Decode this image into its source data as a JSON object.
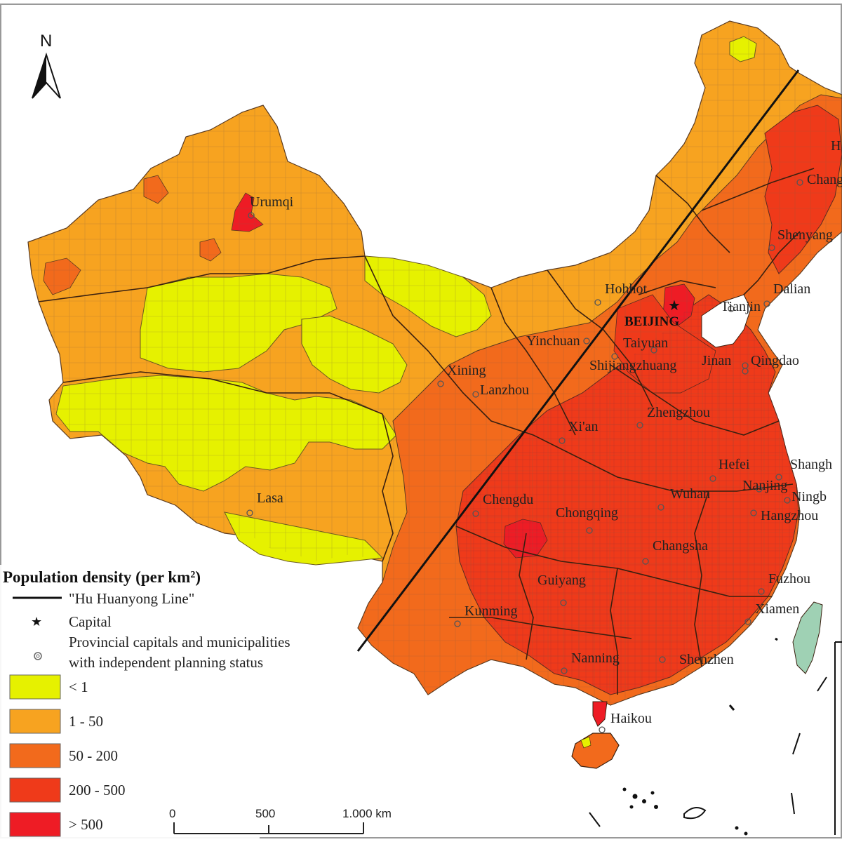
{
  "map": {
    "north_label": "N",
    "hu_line_color": "#111111",
    "capital": {
      "name": "BEIJING",
      "symbol": "★"
    },
    "cities": [
      {
        "name": "Urumqi"
      },
      {
        "name": "Lasa"
      },
      {
        "name": "Xining"
      },
      {
        "name": "Lanzhou"
      },
      {
        "name": "Yinchuan"
      },
      {
        "name": "Hohhot"
      },
      {
        "name": "Taiyuan"
      },
      {
        "name": "Shijiangzhuang"
      },
      {
        "name": "Tianjin"
      },
      {
        "name": "Jinan"
      },
      {
        "name": "Qingdao"
      },
      {
        "name": "Dalian"
      },
      {
        "name": "Shenyang"
      },
      {
        "name": "Chang"
      },
      {
        "name": "H"
      },
      {
        "name": "Xi'an"
      },
      {
        "name": "Zhengzhou"
      },
      {
        "name": "Chengdu"
      },
      {
        "name": "Chongqing"
      },
      {
        "name": "Wuhan"
      },
      {
        "name": "Hefei"
      },
      {
        "name": "Shangh"
      },
      {
        "name": "Nanjing"
      },
      {
        "name": "Ningb"
      },
      {
        "name": "Hangzhou"
      },
      {
        "name": "Changsha"
      },
      {
        "name": "Guiyang"
      },
      {
        "name": "Kunming"
      },
      {
        "name": "Fuzhou"
      },
      {
        "name": "Xiamen"
      },
      {
        "name": "Nanning"
      },
      {
        "name": "Shenzhen"
      },
      {
        "name": "Haikou"
      }
    ]
  },
  "legend": {
    "title": "Population density (per km",
    "title_sup": "2",
    "title_close": ")",
    "line_label": "\"Hu Huanyong Line\"",
    "capital_label": "Capital",
    "provincial_label_1": "Provincial capitals and municipalities",
    "provincial_label_2": "with independent planning status",
    "classes": [
      {
        "label": "< 1",
        "color": "#e6f100"
      },
      {
        "label": "1 - 50",
        "color": "#f7a320"
      },
      {
        "label": "50 - 200",
        "color": "#f26a1c"
      },
      {
        "label": "200 - 500",
        "color": "#ef3a1a"
      },
      {
        "label": "> 500",
        "color": "#ee1c25"
      }
    ]
  },
  "scale_bar": {
    "ticks": [
      "0",
      "500",
      "1.000 km"
    ]
  }
}
